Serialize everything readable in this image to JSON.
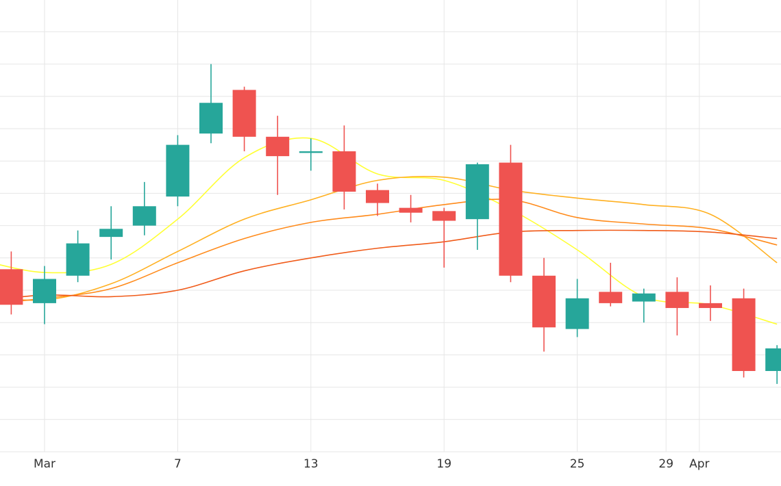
{
  "chart_data": {
    "type": "candlestick",
    "title": "",
    "xlabel": "",
    "ylabel": "",
    "grid": true,
    "legend": "none",
    "ylim": [
      0,
      100
    ],
    "colors": {
      "up": "#26a69a",
      "down": "#ef5350",
      "ma": [
        "#ffff33",
        "#ffb020",
        "#ff8a1a",
        "#f05a18"
      ],
      "grid": "#e6e6e6",
      "background": "#ffffff"
    },
    "x_ticks": [
      {
        "label": "Mar",
        "day": 1
      },
      {
        "label": "7",
        "day": 7
      },
      {
        "label": "13",
        "day": 13
      },
      {
        "label": "19",
        "day": 19
      },
      {
        "label": "25",
        "day": 25
      },
      {
        "label": "29",
        "day": 29
      },
      {
        "label": "Apr",
        "day": 30.5
      }
    ],
    "candles": [
      {
        "day": -0.5,
        "open": 56.5,
        "high": 62.0,
        "low": 42.5,
        "close": 45.5
      },
      {
        "day": 1,
        "open": 46.0,
        "high": 57.5,
        "low": 39.5,
        "close": 53.5
      },
      {
        "day": 2.5,
        "open": 54.5,
        "high": 68.5,
        "low": 52.5,
        "close": 64.5
      },
      {
        "day": 4,
        "open": 66.5,
        "high": 76.0,
        "low": 59.5,
        "close": 69.0
      },
      {
        "day": 5.5,
        "open": 70.0,
        "high": 83.5,
        "low": 67.0,
        "close": 76.0
      },
      {
        "day": 7,
        "open": 79.0,
        "high": 98.0,
        "low": 76.0,
        "close": 95.0
      },
      {
        "day": 8.5,
        "open": 98.5,
        "high": 120.0,
        "low": 95.5,
        "close": 108.0
      },
      {
        "day": 10,
        "open": 112.0,
        "high": 113.0,
        "low": 93.0,
        "close": 97.5
      },
      {
        "day": 11.5,
        "open": 97.5,
        "high": 104.0,
        "low": 79.5,
        "close": 91.5
      },
      {
        "day": 13,
        "open": 92.5,
        "high": 97.0,
        "low": 87.0,
        "close": 93.0
      },
      {
        "day": 14.5,
        "open": 93.0,
        "high": 101.0,
        "low": 75.0,
        "close": 80.5
      },
      {
        "day": 16,
        "open": 81.0,
        "high": 83.0,
        "low": 73.0,
        "close": 77.0
      },
      {
        "day": 17.5,
        "open": 75.5,
        "high": 79.5,
        "low": 71.0,
        "close": 74.0
      },
      {
        "day": 19,
        "open": 74.5,
        "high": 75.5,
        "low": 57.0,
        "close": 71.5
      },
      {
        "day": 20.5,
        "open": 72.0,
        "high": 89.5,
        "low": 62.5,
        "close": 89.0
      },
      {
        "day": 22,
        "open": 89.5,
        "high": 95.0,
        "low": 52.5,
        "close": 54.5
      },
      {
        "day": 23.5,
        "open": 54.5,
        "high": 60.0,
        "low": 31.0,
        "close": 38.5
      },
      {
        "day": 25,
        "open": 38.0,
        "high": 53.5,
        "low": 35.5,
        "close": 47.5
      },
      {
        "day": 26.5,
        "open": 49.5,
        "high": 58.5,
        "low": 45.0,
        "close": 46.0
      },
      {
        "day": 28,
        "open": 46.5,
        "high": 50.5,
        "low": 40.0,
        "close": 49.0
      },
      {
        "day": 29.5,
        "open": 49.5,
        "high": 54.0,
        "low": 36.0,
        "close": 44.5
      },
      {
        "day": 31,
        "open": 46.0,
        "high": 51.5,
        "low": 40.5,
        "close": 44.5
      },
      {
        "day": 32.5,
        "open": 47.5,
        "high": 50.5,
        "low": 23.0,
        "close": 25.0
      },
      {
        "day": 34,
        "open": 25.0,
        "high": 33.0,
        "low": 21.0,
        "close": 32.0
      }
    ],
    "series": [
      {
        "points": [
          [
            -2,
            59.5
          ],
          [
            1,
            55.5
          ],
          [
            4,
            58.0
          ],
          [
            7,
            72.0
          ],
          [
            10,
            91.0
          ],
          [
            13,
            97.0
          ],
          [
            16,
            86.0
          ],
          [
            19,
            84.0
          ],
          [
            22,
            75.0
          ],
          [
            25,
            62.5
          ],
          [
            28,
            48.0
          ],
          [
            31,
            45.5
          ],
          [
            34,
            39.5
          ]
        ]
      },
      {
        "points": [
          [
            -2,
            48.5
          ],
          [
            1,
            47.0
          ],
          [
            4,
            52.0
          ],
          [
            7,
            62.0
          ],
          [
            10,
            72.0
          ],
          [
            13,
            78.0
          ],
          [
            16,
            84.0
          ],
          [
            19,
            85.0
          ],
          [
            22,
            81.0
          ],
          [
            25,
            78.5
          ],
          [
            28,
            76.5
          ],
          [
            31,
            73.5
          ],
          [
            34,
            58.5
          ]
        ]
      },
      {
        "points": [
          [
            -2,
            45.5
          ],
          [
            1,
            47.5
          ],
          [
            4,
            50.5
          ],
          [
            7,
            58.5
          ],
          [
            10,
            66.0
          ],
          [
            13,
            71.0
          ],
          [
            16,
            73.5
          ],
          [
            19,
            76.5
          ],
          [
            22,
            78.0
          ],
          [
            25,
            72.5
          ],
          [
            28,
            70.5
          ],
          [
            31,
            69.0
          ],
          [
            34,
            64.0
          ]
        ]
      },
      {
        "points": [
          [
            -2,
            46.5
          ],
          [
            1,
            48.5
          ],
          [
            4,
            48.0
          ],
          [
            7,
            50.0
          ],
          [
            10,
            56.0
          ],
          [
            13,
            60.0
          ],
          [
            16,
            63.0
          ],
          [
            19,
            65.0
          ],
          [
            22,
            68.0
          ],
          [
            25,
            68.5
          ],
          [
            28,
            68.5
          ],
          [
            31,
            68.0
          ],
          [
            34,
            66.0
          ]
        ]
      }
    ]
  }
}
